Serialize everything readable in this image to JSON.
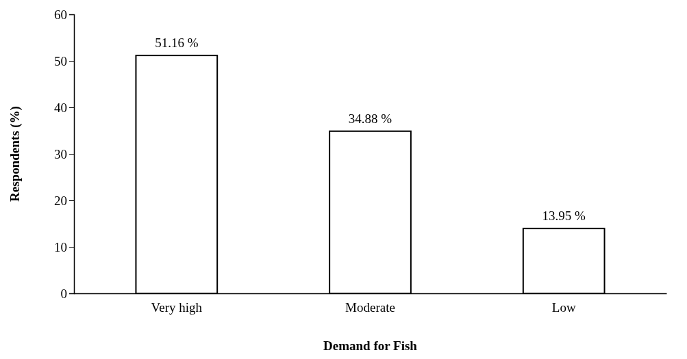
{
  "chart_data": {
    "type": "bar",
    "xlabel": "Demand for Fish",
    "ylabel": "Respondents (%)",
    "categories": [
      "Very high",
      "Moderate",
      "Low"
    ],
    "values": [
      51.16,
      34.88,
      13.95
    ],
    "value_labels": [
      "51.16 %",
      "34.88 %",
      "13.95 %"
    ],
    "color": "#ffffff",
    "ylim": [
      0,
      60
    ],
    "yticks": [
      0,
      10,
      20,
      30,
      40,
      50,
      60
    ],
    "grid": false
  }
}
